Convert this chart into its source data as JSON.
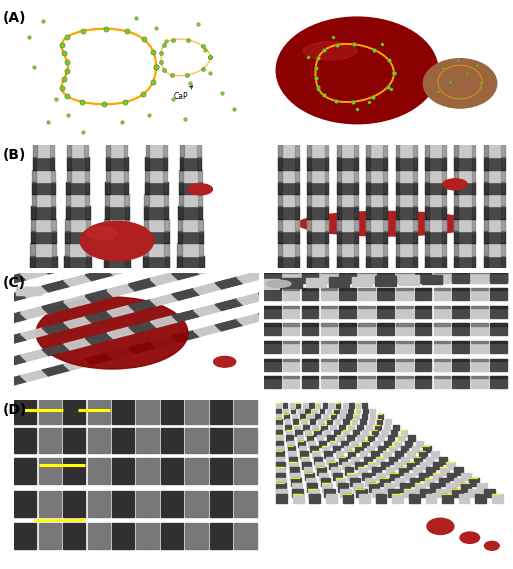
{
  "figure_width": 5.13,
  "figure_height": 5.69,
  "dpi": 100,
  "bg_color": "#ffffff",
  "panel_bg": "#87CEEB",
  "border_color": "#999999",
  "labels": [
    "(A)",
    "(B)",
    "(C)",
    "(D)"
  ],
  "label_fontsize": 10,
  "label_color": "#000000",
  "cap_label": "CaP",
  "green_color": "#7DC832",
  "orange_color": "#FFA500",
  "dark_red": "#8B0000",
  "light_red": "#B02020",
  "gray_dark": "#484848",
  "gray_light": "#C8C8C8",
  "yellow_color": "#FFFF00",
  "white_color": "#FFFFFF",
  "brown_color": "#9B6B3A"
}
